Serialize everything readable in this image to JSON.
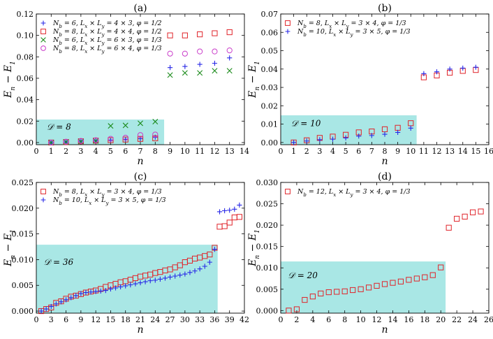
{
  "chart_data": [
    {
      "type": "scatter",
      "title": "(a)",
      "xlabel": "n",
      "ylabel": "E_n − E_1",
      "xlim": [
        0,
        14
      ],
      "ylim": [
        -0.002,
        0.12
      ],
      "xticks": [
        0,
        1,
        2,
        3,
        4,
        5,
        6,
        7,
        8,
        9,
        10,
        11,
        12,
        13,
        14
      ],
      "xtick_labels": [
        "0",
        "1",
        "2",
        "3",
        "4",
        "5",
        "6",
        "7",
        "8",
        "9",
        "10",
        "11",
        "12",
        "13",
        "14"
      ],
      "yticks": [
        0.0,
        0.02,
        0.04,
        0.06,
        0.08,
        0.1,
        0.12
      ],
      "ytick_labels": [
        "0.00",
        "0.02",
        "0.04",
        "0.06",
        "0.08",
        "0.10",
        "0.12"
      ],
      "shade": {
        "x_end": 8.6,
        "y_top": 0.0215,
        "label": "𝒟 = 8",
        "label_x": 0.7,
        "label_y": 0.0145
      },
      "legend": "top-left",
      "series": [
        {
          "name": "N_b = 6, L_x × L_y = 4 × 3, φ = 1/2",
          "marker": "plus",
          "color": "#2727e6",
          "x": [
            1,
            2,
            3,
            4,
            5,
            6,
            7,
            8,
            9,
            10,
            11,
            12,
            13
          ],
          "y": [
            0,
            0.0006,
            0.0012,
            0.0018,
            0.0024,
            0.003,
            0.0036,
            0.005,
            0.07,
            0.071,
            0.073,
            0.074,
            0.079
          ]
        },
        {
          "name": "N_b = 8, L_x × L_y = 4 × 4, φ = 1/2",
          "marker": "square",
          "color": "#e0242a",
          "x": [
            1,
            2,
            3,
            4,
            5,
            6,
            7,
            8,
            9,
            10,
            11,
            12,
            13
          ],
          "y": [
            0,
            0.0005,
            0.0012,
            0.0018,
            0.0022,
            0.0028,
            0.0034,
            0.004,
            0.1,
            0.1,
            0.101,
            0.102,
            0.103
          ]
        },
        {
          "name": "N_b = 6, L_x × L_y = 6 × 3, φ = 1/3",
          "marker": "x",
          "color": "#1a8a1a",
          "x": [
            1,
            2,
            3,
            4,
            5,
            6,
            7,
            8,
            9,
            10,
            11,
            12,
            13
          ],
          "y": [
            0,
            0.0005,
            0.001,
            0.0015,
            0.0155,
            0.016,
            0.018,
            0.0195,
            0.063,
            0.065,
            0.065,
            0.067,
            0.067
          ]
        },
        {
          "name": "N_b = 8, L_x × L_y = 6 × 4, φ = 1/3",
          "marker": "circle",
          "color": "#c93bc9",
          "x": [
            1,
            2,
            3,
            4,
            5,
            6,
            7,
            8,
            9,
            10,
            11,
            12,
            13
          ],
          "y": [
            0,
            0.0008,
            0.0015,
            0.0022,
            0.0035,
            0.0045,
            0.007,
            0.0075,
            0.083,
            0.083,
            0.085,
            0.085,
            0.086
          ]
        }
      ]
    },
    {
      "type": "scatter",
      "title": "(b)",
      "xlabel": "n",
      "ylabel": "E_n − E_1",
      "xlim": [
        0,
        16
      ],
      "ylim": [
        -0.0012,
        0.07
      ],
      "xticks": [
        0,
        1,
        2,
        3,
        4,
        5,
        6,
        7,
        8,
        9,
        10,
        11,
        12,
        13,
        14,
        15,
        16
      ],
      "xtick_labels": [
        "0",
        "1",
        "2",
        "3",
        "4",
        "5",
        "6",
        "7",
        "8",
        "9",
        "10",
        "11",
        "12",
        "13",
        "14",
        "15",
        "16"
      ],
      "yticks": [
        0.0,
        0.01,
        0.02,
        0.03,
        0.04,
        0.05,
        0.06,
        0.07
      ],
      "ytick_labels": [
        "0.00",
        "0.01",
        "0.02",
        "0.03",
        "0.04",
        "0.05",
        "0.06",
        "0.07"
      ],
      "shade": {
        "x_end": 10.45,
        "y_top": 0.0148,
        "label": "𝒟 = 10",
        "label_x": 0.8,
        "label_y": 0.0105
      },
      "legend": "top-left",
      "series": [
        {
          "name": "N_b = 8, L_x × L_y = 3 × 4, φ = 1/3",
          "marker": "square",
          "color": "#e0242a",
          "x": [
            1,
            2,
            3,
            4,
            5,
            6,
            7,
            8,
            9,
            10,
            11,
            12,
            13,
            14,
            15
          ],
          "y": [
            0,
            0.0012,
            0.0025,
            0.0032,
            0.0042,
            0.0055,
            0.006,
            0.0072,
            0.008,
            0.0105,
            0.0355,
            0.0365,
            0.038,
            0.039,
            0.0395
          ]
        },
        {
          "name": "N_b = 10, L_x × L_y = 3 × 5, φ = 1/3",
          "marker": "plus",
          "color": "#2727e6",
          "x": [
            1,
            2,
            3,
            4,
            5,
            6,
            7,
            8,
            9,
            10,
            11,
            12,
            13,
            14,
            15
          ],
          "y": [
            0,
            0.0008,
            0.0015,
            0.0018,
            0.0025,
            0.0035,
            0.0038,
            0.0045,
            0.0055,
            0.0078,
            0.0375,
            0.0385,
            0.04,
            0.0405,
            0.041
          ]
        }
      ]
    },
    {
      "type": "scatter",
      "title": "(c)",
      "xlabel": "n",
      "ylabel": "E_n − E_1",
      "xlim": [
        0,
        42
      ],
      "ylim": [
        -0.0004,
        0.025
      ],
      "xticks": [
        0,
        3,
        6,
        9,
        12,
        15,
        18,
        21,
        24,
        27,
        30,
        33,
        36,
        39,
        42
      ],
      "xtick_labels": [
        "0",
        "3",
        "6",
        "9",
        "12",
        "15",
        "18",
        "21",
        "24",
        "27",
        "30",
        "33",
        "36",
        "39",
        "42"
      ],
      "yticks": [
        0.0,
        0.005,
        0.01,
        0.015,
        0.02,
        0.025
      ],
      "ytick_labels": [
        "0.000",
        "0.005",
        "0.010",
        "0.015",
        "0.020",
        "0.025"
      ],
      "shade": {
        "x_end": 36.6,
        "y_top": 0.0129,
        "label": "𝒟 = 36",
        "label_x": 1.5,
        "label_y": 0.0095
      },
      "legend": "top-left",
      "series": [
        {
          "name": "N_b = 8, L_x × L_y = 3 × 4, φ = 1/3",
          "marker": "square",
          "color": "#e0242a",
          "x": [
            1,
            2,
            3,
            4,
            5,
            6,
            7,
            8,
            9,
            10,
            11,
            12,
            13,
            14,
            15,
            16,
            17,
            18,
            19,
            20,
            21,
            22,
            23,
            24,
            25,
            26,
            27,
            28,
            29,
            30,
            31,
            32,
            33,
            34,
            35,
            36,
            37,
            38,
            39,
            40,
            41
          ],
          "y": [
            0,
            0.0004,
            0.0007,
            0.0016,
            0.0019,
            0.0024,
            0.0028,
            0.003,
            0.0033,
            0.0036,
            0.0038,
            0.004,
            0.0043,
            0.0047,
            0.005,
            0.0053,
            0.0056,
            0.0058,
            0.0061,
            0.0064,
            0.0067,
            0.0069,
            0.0071,
            0.0074,
            0.0076,
            0.0079,
            0.0081,
            0.0085,
            0.0089,
            0.0095,
            0.0098,
            0.0102,
            0.0104,
            0.0107,
            0.011,
            0.0123,
            0.0164,
            0.0165,
            0.0172,
            0.0182,
            0.0183
          ]
        },
        {
          "name": "N_b = 10, L_x × L_y = 3 × 5, φ = 1/3",
          "marker": "plus",
          "color": "#2727e6",
          "x": [
            1,
            2,
            3,
            4,
            5,
            6,
            7,
            8,
            9,
            10,
            11,
            12,
            13,
            14,
            15,
            16,
            17,
            18,
            19,
            20,
            21,
            22,
            23,
            24,
            25,
            26,
            27,
            28,
            29,
            30,
            31,
            32,
            33,
            34,
            35,
            36,
            37,
            38,
            39,
            40,
            41
          ],
          "y": [
            0,
            0.0004,
            0.0009,
            0.0014,
            0.0018,
            0.0022,
            0.0026,
            0.003,
            0.0034,
            0.0036,
            0.0037,
            0.0038,
            0.0039,
            0.004,
            0.0043,
            0.0045,
            0.0047,
            0.0049,
            0.0051,
            0.0053,
            0.0055,
            0.0057,
            0.0059,
            0.006,
            0.0062,
            0.0064,
            0.0066,
            0.0068,
            0.007,
            0.0072,
            0.0075,
            0.0078,
            0.0082,
            0.0087,
            0.0095,
            0.012,
            0.0193,
            0.0195,
            0.0196,
            0.0198,
            0.0206
          ]
        }
      ]
    },
    {
      "type": "scatter",
      "title": "(d)",
      "xlabel": "n",
      "ylabel": "E_n − E_1",
      "xlim": [
        0,
        26
      ],
      "ylim": [
        -0.0006,
        0.03
      ],
      "xticks": [
        0,
        2,
        4,
        6,
        8,
        10,
        12,
        14,
        16,
        18,
        20,
        22,
        24,
        26
      ],
      "xtick_labels": [
        "0",
        "2",
        "4",
        "6",
        "8",
        "10",
        "12",
        "14",
        "16",
        "18",
        "20",
        "22",
        "24",
        "26"
      ],
      "yticks": [
        0.0,
        0.005,
        0.01,
        0.015,
        0.02,
        0.025,
        0.03
      ],
      "ytick_labels": [
        "0.000",
        "0.005",
        "0.010",
        "0.015",
        "0.020",
        "0.025",
        "0.030"
      ],
      "shade": {
        "x_end": 20.6,
        "y_top": 0.0115,
        "label": "𝒟 = 20",
        "label_x": 0.9,
        "label_y": 0.0082
      },
      "legend": "top-left",
      "series": [
        {
          "name": "N_b = 12, L_x × L_y = 3 × 4, φ = 1/3",
          "marker": "square",
          "color": "#e0242a",
          "x": [
            1,
            2,
            3,
            4,
            5,
            6,
            7,
            8,
            9,
            10,
            11,
            12,
            13,
            14,
            15,
            16,
            17,
            18,
            19,
            20,
            21,
            22,
            23,
            24,
            25
          ],
          "y": [
            0,
            0.0003,
            0.0025,
            0.0033,
            0.004,
            0.0043,
            0.0044,
            0.0045,
            0.0048,
            0.005,
            0.0054,
            0.0058,
            0.0062,
            0.0065,
            0.0068,
            0.0072,
            0.0075,
            0.0078,
            0.0083,
            0.0101,
            0.0194,
            0.0215,
            0.022,
            0.023,
            0.0232
          ]
        }
      ]
    }
  ]
}
